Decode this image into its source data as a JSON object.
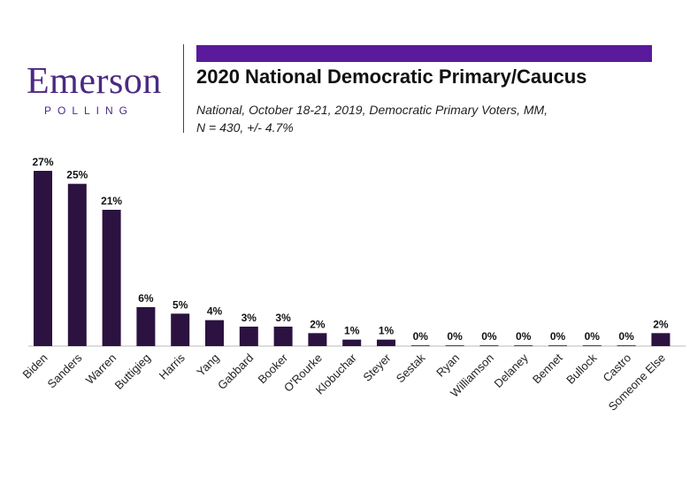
{
  "branding": {
    "logo_text": "Emerson",
    "logo_subtext": "POLLING",
    "accent_color": "#5a1a9c",
    "logo_color": "#4b2a82"
  },
  "header": {
    "title": "2020 National Democratic Primary/Caucus",
    "subtitle_line1": "National, October 18-21, 2019, Democratic Primary Voters, MM,",
    "subtitle_line2": "N = 430, +/- 4.7%"
  },
  "chart_data": {
    "type": "bar",
    "title": "2020 National Democratic Primary/Caucus",
    "xlabel": "",
    "ylabel": "",
    "ylim": [
      0,
      27
    ],
    "bar_color": "#2b1240",
    "value_suffix": "%",
    "categories": [
      "Biden",
      "Sanders",
      "Warren",
      "Buttigieg",
      "Harris",
      "Yang",
      "Gabbard",
      "Booker",
      "O'Rourke",
      "Klobuchar",
      "Steyer",
      "Sestak",
      "Ryan",
      "Williamson",
      "Delaney",
      "Bennet",
      "Bullock",
      "Castro",
      "Someone Else"
    ],
    "values": [
      27,
      25,
      21,
      6,
      5,
      4,
      3,
      3,
      2,
      1,
      1,
      0,
      0,
      0,
      0,
      0,
      0,
      0,
      2
    ]
  }
}
